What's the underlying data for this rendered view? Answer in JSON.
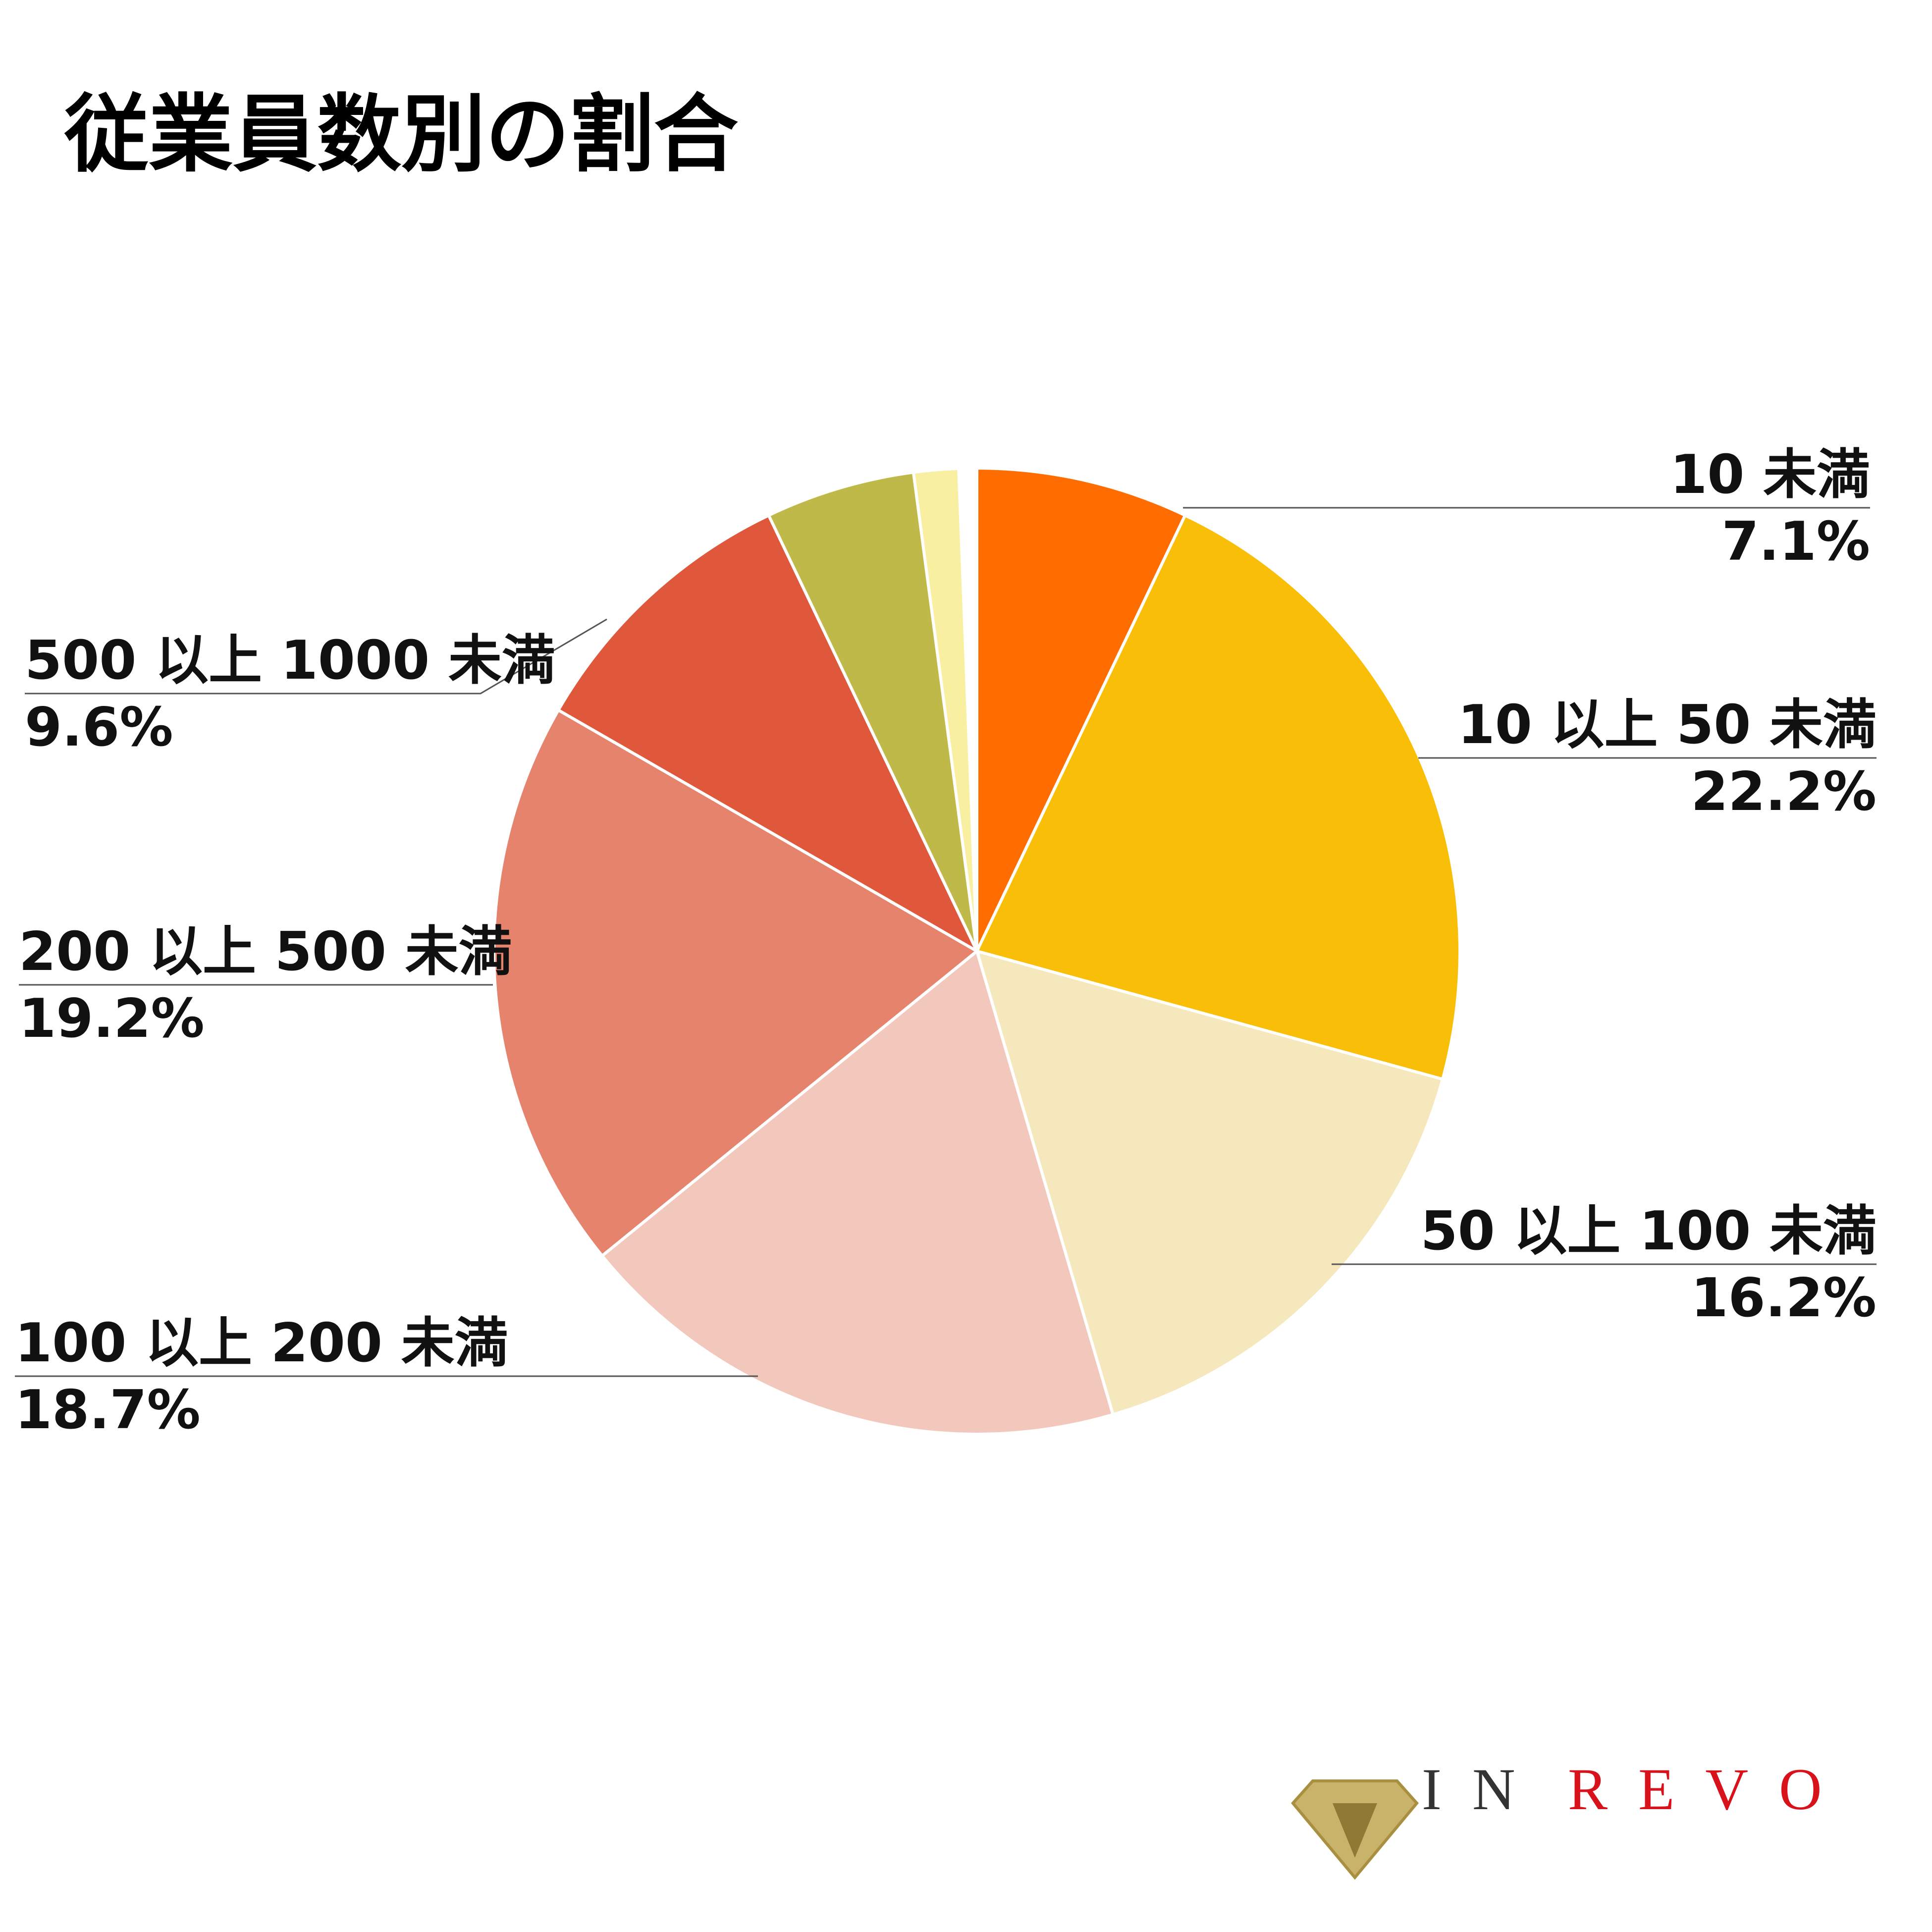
{
  "chart_data": {
    "type": "pie",
    "title": "従業員数別の割合",
    "categories": [
      "10 未満",
      "10 以上 50 未満",
      "50 以上 100 未満",
      "100 以上 200 未満",
      "200 以上 500 未満",
      "500 以上 1000 未満",
      null,
      null,
      null
    ],
    "values": [
      7.1,
      22.2,
      16.2,
      18.7,
      19.2,
      9.6,
      5.0,
      1.5,
      0.6
    ],
    "value_labels": [
      "7.1%",
      "22.2%",
      "16.2%",
      "18.7%",
      "19.2%",
      "9.6%",
      null,
      null,
      null
    ],
    "colors": [
      "#ff6d00",
      "#f8be08",
      "#f6e8bd",
      "#f3c8bc",
      "#e6836d",
      "#df583c",
      "#bfb94a",
      "#f8f0a0",
      "#ffffff"
    ],
    "logo_parts": [
      "IN",
      "REVO"
    ]
  }
}
